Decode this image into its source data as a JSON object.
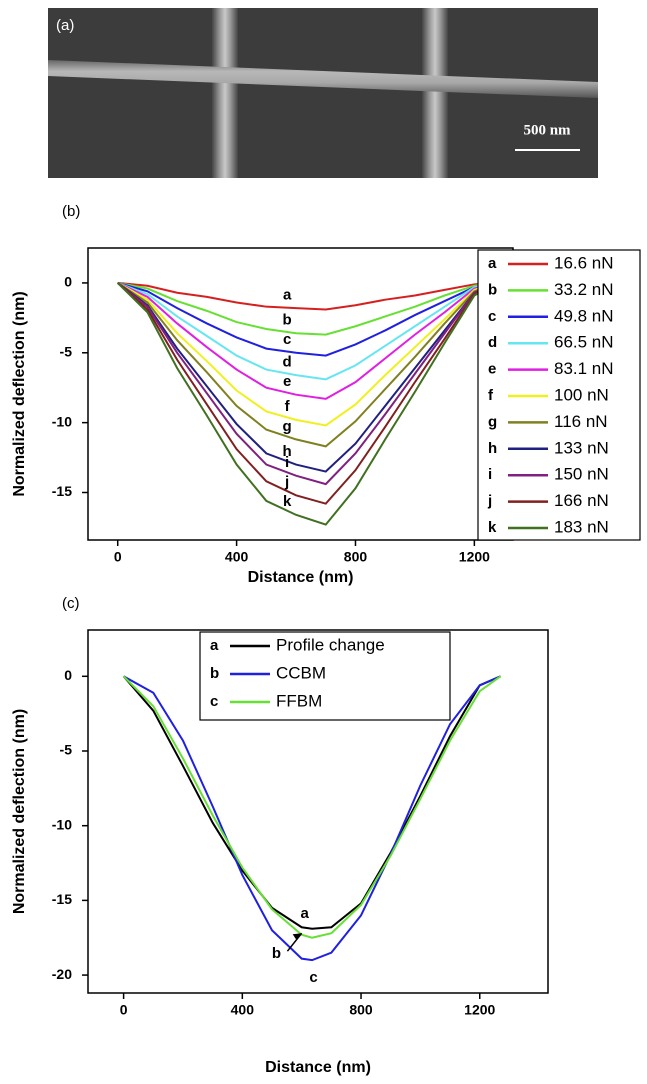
{
  "image": {
    "label": "(a)",
    "scale_bar": "500 nm"
  },
  "chart_data": [
    {
      "type": "line",
      "panel_label": "(b)",
      "xlabel": "Distance (nm)",
      "ylabel": "Normalized deflection (nm)",
      "xlim": [
        -100,
        1330
      ],
      "ylim": [
        -18.4,
        2.5
      ],
      "xticks": [
        0,
        400,
        800,
        1200
      ],
      "yticks": [
        0,
        -5,
        -10,
        -15
      ],
      "legend": "right",
      "x": [
        0,
        100,
        200,
        300,
        400,
        500,
        600,
        700,
        800,
        900,
        1000,
        1100,
        1200,
        1275
      ],
      "series": [
        {
          "label": "a",
          "name": "16.6 nN",
          "color": "#d62020",
          "values": [
            0,
            -0.2,
            -0.7,
            -1.0,
            -1.4,
            -1.7,
            -1.8,
            -1.9,
            -1.6,
            -1.2,
            -0.9,
            -0.5,
            -0.1,
            0
          ]
        },
        {
          "label": "b",
          "name": "33.2 nN",
          "color": "#66e033",
          "values": [
            0,
            -0.4,
            -1.3,
            -2.0,
            -2.8,
            -3.3,
            -3.6,
            -3.7,
            -3.1,
            -2.4,
            -1.7,
            -0.9,
            -0.2,
            0
          ]
        },
        {
          "label": "c",
          "name": "49.8 nN",
          "color": "#2020e0",
          "values": [
            0,
            -0.6,
            -1.8,
            -2.9,
            -3.9,
            -4.7,
            -5.0,
            -5.2,
            -4.4,
            -3.4,
            -2.3,
            -1.3,
            -0.3,
            0
          ]
        },
        {
          "label": "d",
          "name": "66.5 nN",
          "color": "#66e6f0",
          "values": [
            0,
            -0.8,
            -2.4,
            -3.8,
            -5.2,
            -6.2,
            -6.6,
            -6.9,
            -5.9,
            -4.5,
            -3.1,
            -1.7,
            -0.3,
            0
          ]
        },
        {
          "label": "e",
          "name": "83.1 nN",
          "color": "#e020e0",
          "values": [
            0,
            -1.0,
            -2.9,
            -4.6,
            -6.2,
            -7.5,
            -8.0,
            -8.3,
            -7.1,
            -5.4,
            -3.7,
            -2.1,
            -0.4,
            0
          ]
        },
        {
          "label": "f",
          "name": "100 nN",
          "color": "#f0f020",
          "values": [
            0,
            -1.2,
            -3.6,
            -5.6,
            -7.7,
            -9.2,
            -9.8,
            -10.2,
            -8.7,
            -6.6,
            -4.6,
            -2.6,
            -0.5,
            0
          ]
        },
        {
          "label": "g",
          "name": "116 nN",
          "color": "#808020",
          "values": [
            0,
            -1.4,
            -4.1,
            -6.4,
            -8.8,
            -10.5,
            -11.2,
            -11.7,
            -9.9,
            -7.6,
            -5.3,
            -2.9,
            -0.6,
            0
          ]
        },
        {
          "label": "h",
          "name": "133 nN",
          "color": "#202080",
          "values": [
            0,
            -1.6,
            -4.7,
            -7.4,
            -10.1,
            -12.2,
            -13.0,
            -13.5,
            -11.5,
            -8.8,
            -6.1,
            -3.4,
            -0.7,
            0
          ]
        },
        {
          "label": "i",
          "name": "150 nN",
          "color": "#802080",
          "values": [
            0,
            -1.7,
            -5.0,
            -7.9,
            -10.8,
            -13.0,
            -13.8,
            -14.4,
            -12.2,
            -9.4,
            -6.5,
            -3.6,
            -0.7,
            0
          ]
        },
        {
          "label": "j",
          "name": "166 nN",
          "color": "#802020",
          "values": [
            0,
            -1.9,
            -5.5,
            -8.7,
            -11.9,
            -14.2,
            -15.2,
            -15.8,
            -13.4,
            -10.3,
            -7.1,
            -4.0,
            -0.8,
            0
          ]
        },
        {
          "label": "k",
          "name": "183 nN",
          "color": "#407020",
          "values": [
            0,
            -2.1,
            -6.1,
            -9.5,
            -13.0,
            -15.6,
            -16.6,
            -17.3,
            -14.7,
            -11.2,
            -7.8,
            -4.3,
            -0.9,
            0
          ]
        }
      ]
    },
    {
      "type": "line",
      "panel_label": "(c)",
      "xlabel": "Distance (nm)",
      "ylabel": "Normalized deflection (nm)",
      "xlim": [
        -120,
        1430
      ],
      "ylim": [
        -21.2,
        3.1
      ],
      "xticks": [
        0,
        400,
        800,
        1200
      ],
      "yticks": [
        0,
        -5,
        -10,
        -15,
        -20
      ],
      "legend": "top",
      "x": [
        0,
        100,
        200,
        300,
        400,
        500,
        600,
        635,
        700,
        800,
        900,
        1000,
        1100,
        1200,
        1270
      ],
      "series": [
        {
          "label": "a",
          "name": "Profile change",
          "color": "#000000",
          "values": [
            0,
            -2.3,
            -6.0,
            -9.8,
            -13.0,
            -15.5,
            -16.8,
            -16.9,
            -16.8,
            -15.2,
            -11.8,
            -8.0,
            -4.0,
            -0.6,
            0
          ]
        },
        {
          "label": "b",
          "name": "CCBM",
          "color": "#2020e0",
          "values": [
            0,
            -1.1,
            -4.3,
            -8.7,
            -13.3,
            -17.0,
            -18.9,
            -19.0,
            -18.5,
            -16.0,
            -11.9,
            -7.3,
            -3.2,
            -0.6,
            0
          ]
        },
        {
          "label": "c",
          "name": "FFBM",
          "color": "#66e033",
          "values": [
            0,
            -2.0,
            -5.5,
            -9.3,
            -12.8,
            -15.6,
            -17.3,
            -17.5,
            -17.2,
            -15.3,
            -12.0,
            -8.2,
            -4.3,
            -1.0,
            0
          ]
        }
      ],
      "annotations": [
        "a",
        "b",
        "c"
      ]
    }
  ]
}
